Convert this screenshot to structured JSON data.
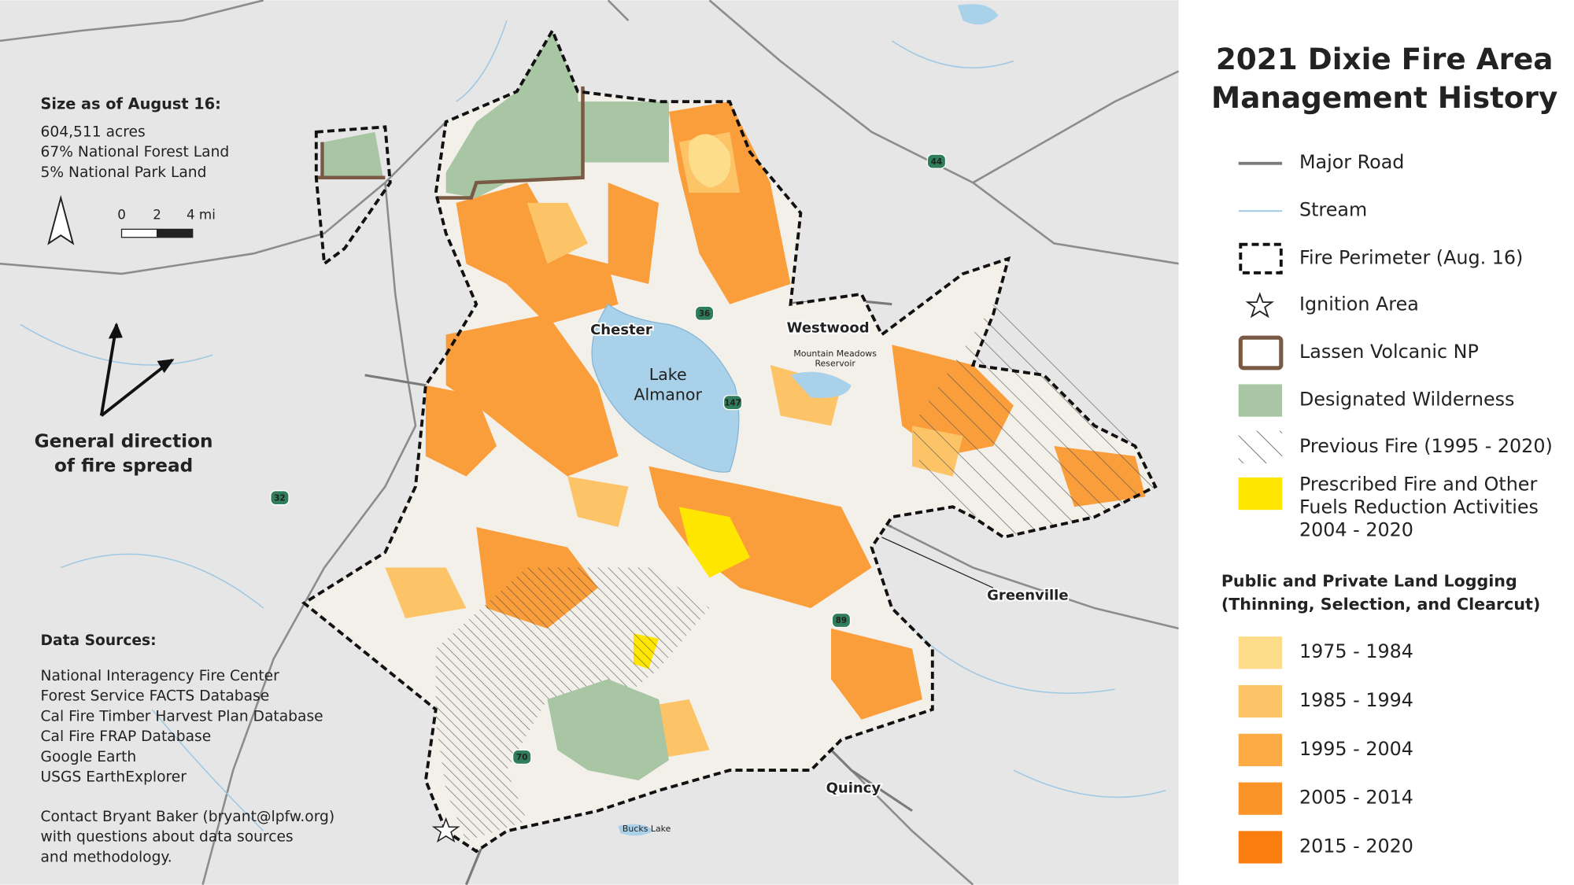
{
  "title": [
    "2021 Dixie Fire Area",
    "Management History"
  ],
  "info": {
    "heading": "Size as of August 16:",
    "lines": [
      "604,511 acres",
      "67% National Forest Land",
      "5% National Park Land"
    ]
  },
  "scale": {
    "labels": [
      "0",
      "2",
      "4 mi"
    ]
  },
  "spread_label": [
    "General direction",
    "of fire spread"
  ],
  "sources": {
    "heading": "Data Sources:",
    "lines": [
      "National Interagency Fire Center",
      "Forest Service FACTS Database",
      "Cal Fire Timber Harvest Plan Database",
      "Cal Fire FRAP Database",
      "Google Earth",
      "USGS EarthExplorer"
    ]
  },
  "contact": [
    "Contact Bryant Baker (bryant@lpfw.org)",
    "with questions about data sources",
    "and methodology."
  ],
  "places": [
    {
      "label": [
        "Chester"
      ],
      "style": "bold"
    },
    {
      "label": [
        "Westwood"
      ],
      "style": "bold"
    },
    {
      "label": [
        "Lake",
        "Almanor"
      ],
      "style": "lake"
    },
    {
      "label": [
        "Mountain Meadows",
        "Reservoir"
      ],
      "style": "small"
    },
    {
      "label": [
        "Greenville"
      ],
      "style": "bold"
    },
    {
      "label": [
        "Quincy"
      ],
      "style": "bold"
    },
    {
      "label": [
        "Bucks Lake"
      ],
      "style": "small"
    }
  ],
  "routes": [
    "44",
    "36",
    "147",
    "32",
    "89",
    "70"
  ],
  "legend": {
    "items": [
      {
        "label": [
          "Major Road"
        ]
      },
      {
        "label": [
          "Stream"
        ]
      },
      {
        "label": [
          "Fire Perimeter (Aug. 16)"
        ]
      },
      {
        "label": [
          "Ignition Area"
        ]
      },
      {
        "label": [
          "Lassen Volcanic NP"
        ]
      },
      {
        "label": [
          "Designated Wilderness"
        ]
      },
      {
        "label": [
          "Previous Fire (1995 - 2020)"
        ]
      },
      {
        "label": [
          "Prescribed Fire and Other",
          "Fuels Reduction Activities",
          "2004 - 2020"
        ]
      }
    ]
  },
  "logging": {
    "heading": [
      "Public and Private Land Logging",
      "(Thinning, Selection, and Clearcut)"
    ],
    "items": [
      {
        "label": "1975 - 1984",
        "color": "#fddc8a"
      },
      {
        "label": "1985 - 1994",
        "color": "#fdc367"
      },
      {
        "label": "1995 - 2004",
        "color": "#fdab45"
      },
      {
        "label": "2005 - 2014",
        "color": "#fb9428"
      },
      {
        "label": "2015 - 2020",
        "color": "#f97d0f"
      }
    ]
  }
}
